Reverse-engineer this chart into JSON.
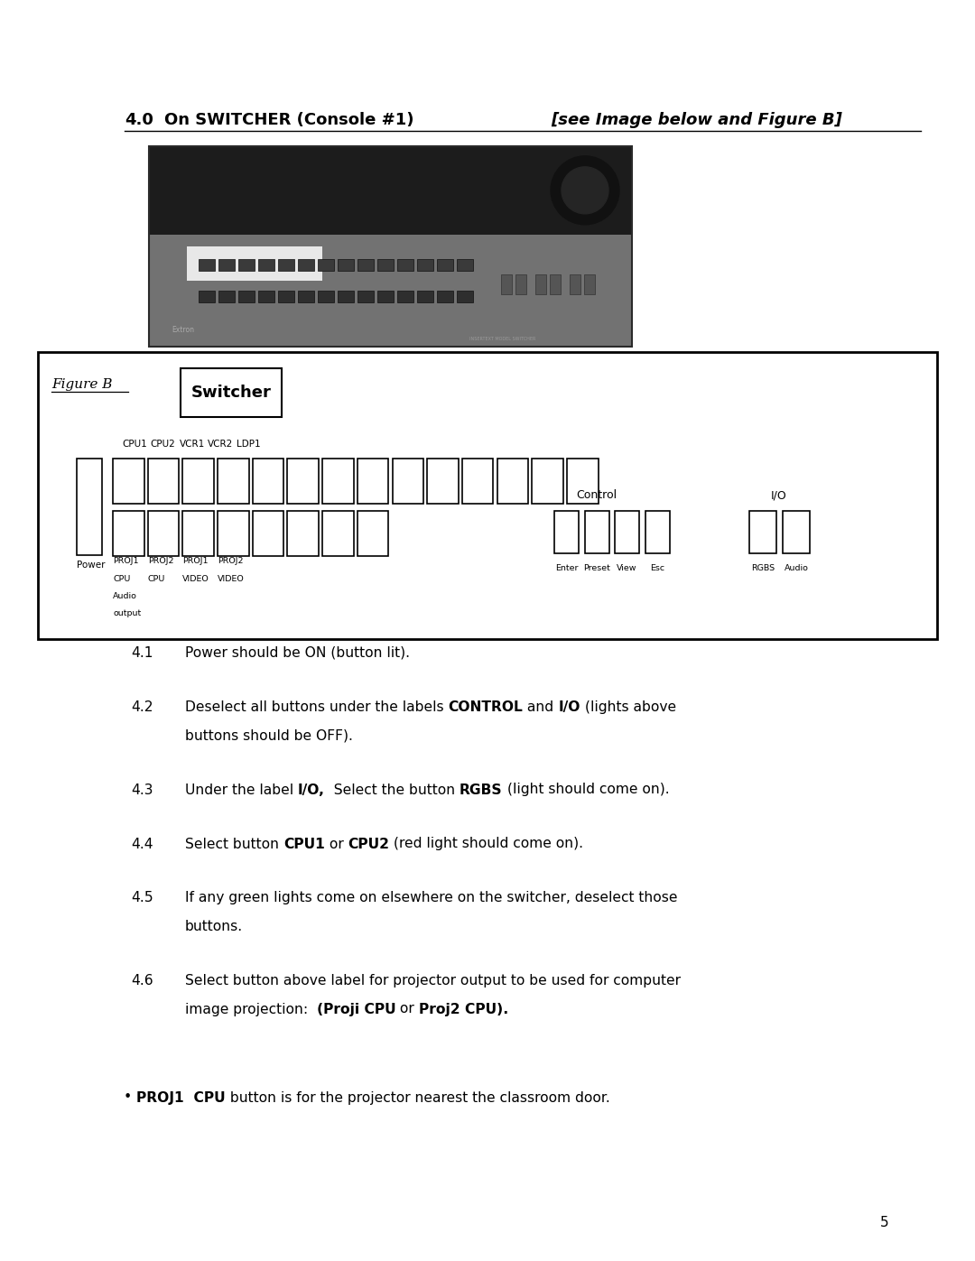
{
  "page_width": 10.8,
  "page_height": 13.97,
  "background_color": "#ffffff",
  "heading_number": "4.0",
  "heading_text_normal": "On SWITCHER (Console #1) ",
  "heading_text_italic": "[see Image below and Figure B]",
  "figure_label": "Figure B",
  "switcher_label": "Switcher",
  "top_row_labels": [
    "CPU1",
    "CPU2",
    "VCR1",
    "VCR2",
    "LDP1"
  ],
  "power_label": "Power",
  "control_label": "Control",
  "io_label": "I/O",
  "control_buttons": [
    "Enter",
    "Preset",
    "View",
    "Esc"
  ],
  "io_buttons": [
    "RGBS",
    "Audio"
  ],
  "proj_bottom_labels": [
    [
      "PROJ1",
      "CPU",
      "Audio",
      "output"
    ],
    [
      "PROJ2",
      "CPU"
    ],
    [
      "PROJ1",
      "VIDEO"
    ],
    [
      "PROJ2",
      "VIDEO"
    ]
  ],
  "page_number": "5"
}
